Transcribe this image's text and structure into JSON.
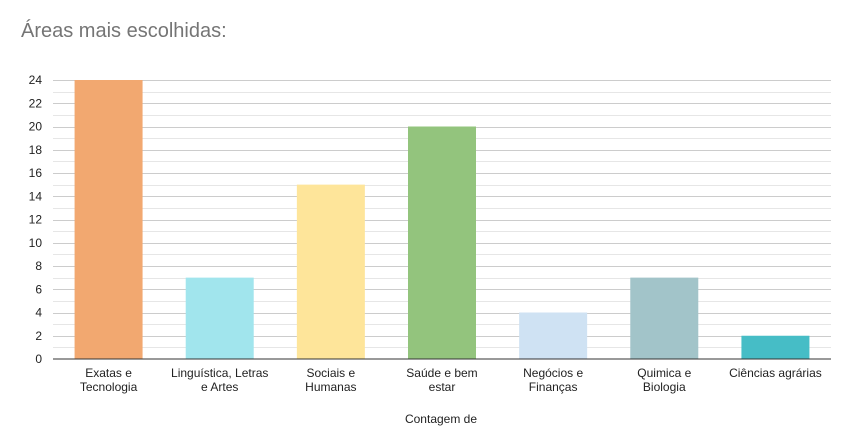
{
  "chart_data": {
    "type": "bar",
    "title": "Áreas mais escolhidas:",
    "xlabel": "Contagem de",
    "ylabel": "",
    "ylim": [
      0,
      24
    ],
    "yticks": [
      0,
      2,
      4,
      6,
      8,
      10,
      12,
      14,
      16,
      18,
      20,
      22,
      24
    ],
    "grid": true,
    "categories": [
      [
        "Exatas e",
        "Tecnologia"
      ],
      [
        "Linguística, Letras",
        "e Artes"
      ],
      [
        "Sociais e",
        "Humanas"
      ],
      [
        "Saúde e bem",
        "estar"
      ],
      [
        "Negócios e",
        "Finanças"
      ],
      [
        "Quimica e",
        "Biologia"
      ],
      [
        "Ciências agrárias"
      ]
    ],
    "values": [
      24,
      7,
      15,
      20,
      4,
      7,
      2
    ],
    "colors": [
      "#f2a870",
      "#a1e5ed",
      "#fee59a",
      "#93c47d",
      "#cfe2f3",
      "#a2c4c9",
      "#46bdc6"
    ]
  }
}
